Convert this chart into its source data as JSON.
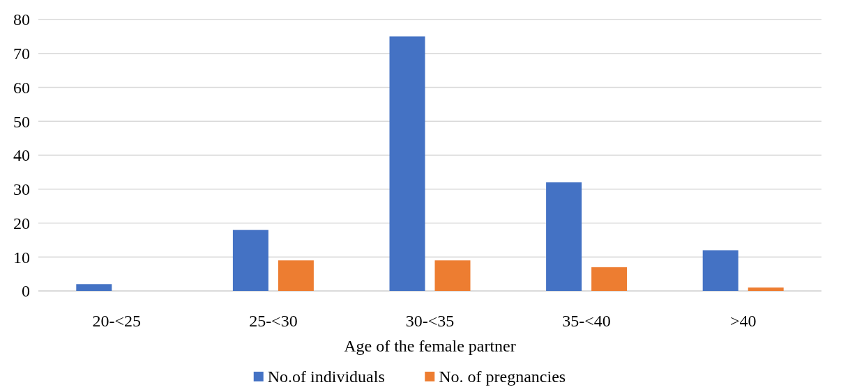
{
  "chart_data": {
    "type": "bar",
    "xlabel": "Age of the female partner",
    "categories": [
      "20-<25",
      "25-<30",
      "30-<35",
      "35-<40",
      ">40"
    ],
    "series": [
      {
        "name": "No.of individuals",
        "color": "#4472c4",
        "values": [
          2,
          18,
          75,
          32,
          12
        ]
      },
      {
        "name": "No. of pregnancies",
        "color": "#ed7d31",
        "values": [
          0,
          9,
          9,
          7,
          1
        ]
      }
    ],
    "ylim": [
      0,
      80
    ],
    "yticks": [
      0,
      10,
      20,
      30,
      40,
      50,
      60,
      70,
      80
    ],
    "grid": "y",
    "legend": "bottom"
  }
}
